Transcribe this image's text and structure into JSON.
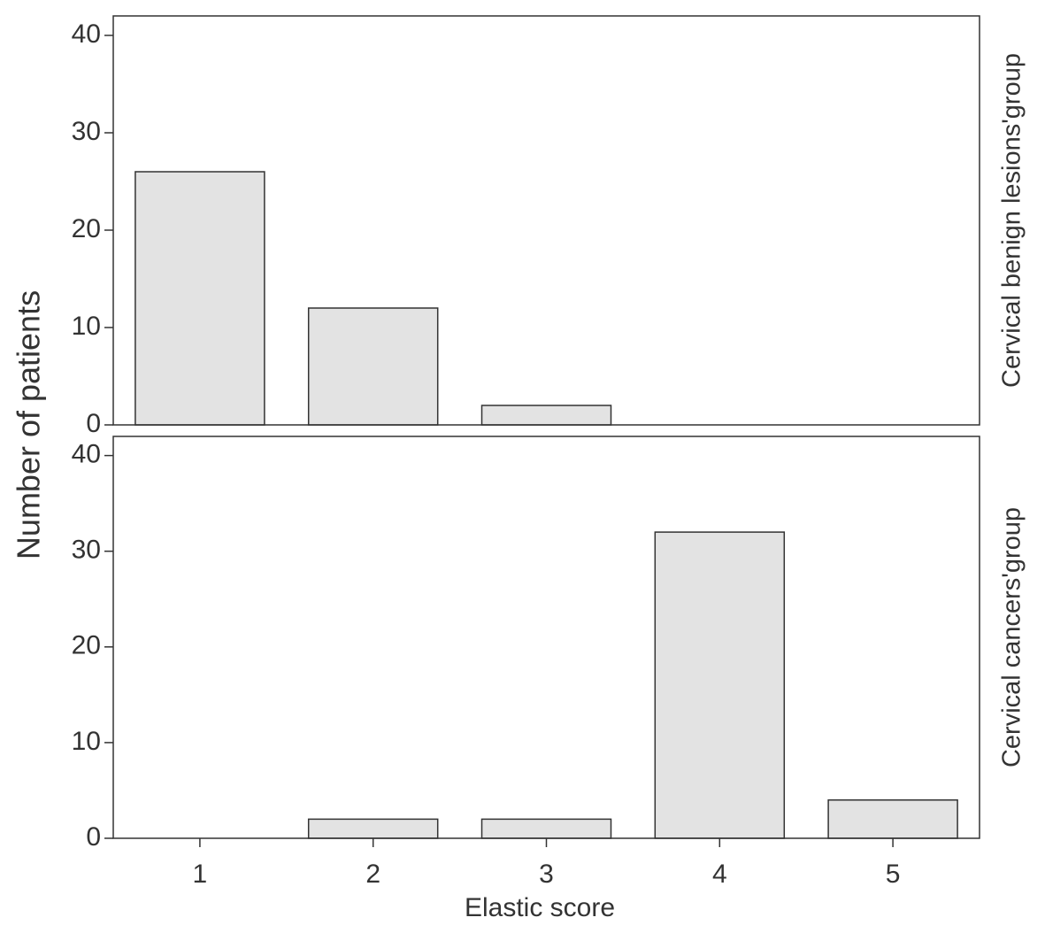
{
  "ylabel": "Number of patients",
  "xlabel": "Elastic score",
  "chart_data": [
    {
      "type": "bar",
      "group": "Cervical benign lesions'group",
      "values": [
        26,
        12,
        2,
        0,
        0
      ],
      "color": "#e3e3e3",
      "ylim": [
        0,
        42
      ],
      "yticks": [
        0,
        10,
        20,
        30,
        40
      ]
    },
    {
      "type": "bar",
      "group": "Cervical cancers'group",
      "categories": [
        "1",
        "2",
        "3",
        "4",
        "5"
      ],
      "values": [
        0,
        2,
        2,
        32,
        4
      ],
      "color": "#e3e3e3",
      "ylim": [
        0,
        42
      ],
      "yticks": [
        0,
        10,
        20,
        30,
        40
      ]
    }
  ]
}
